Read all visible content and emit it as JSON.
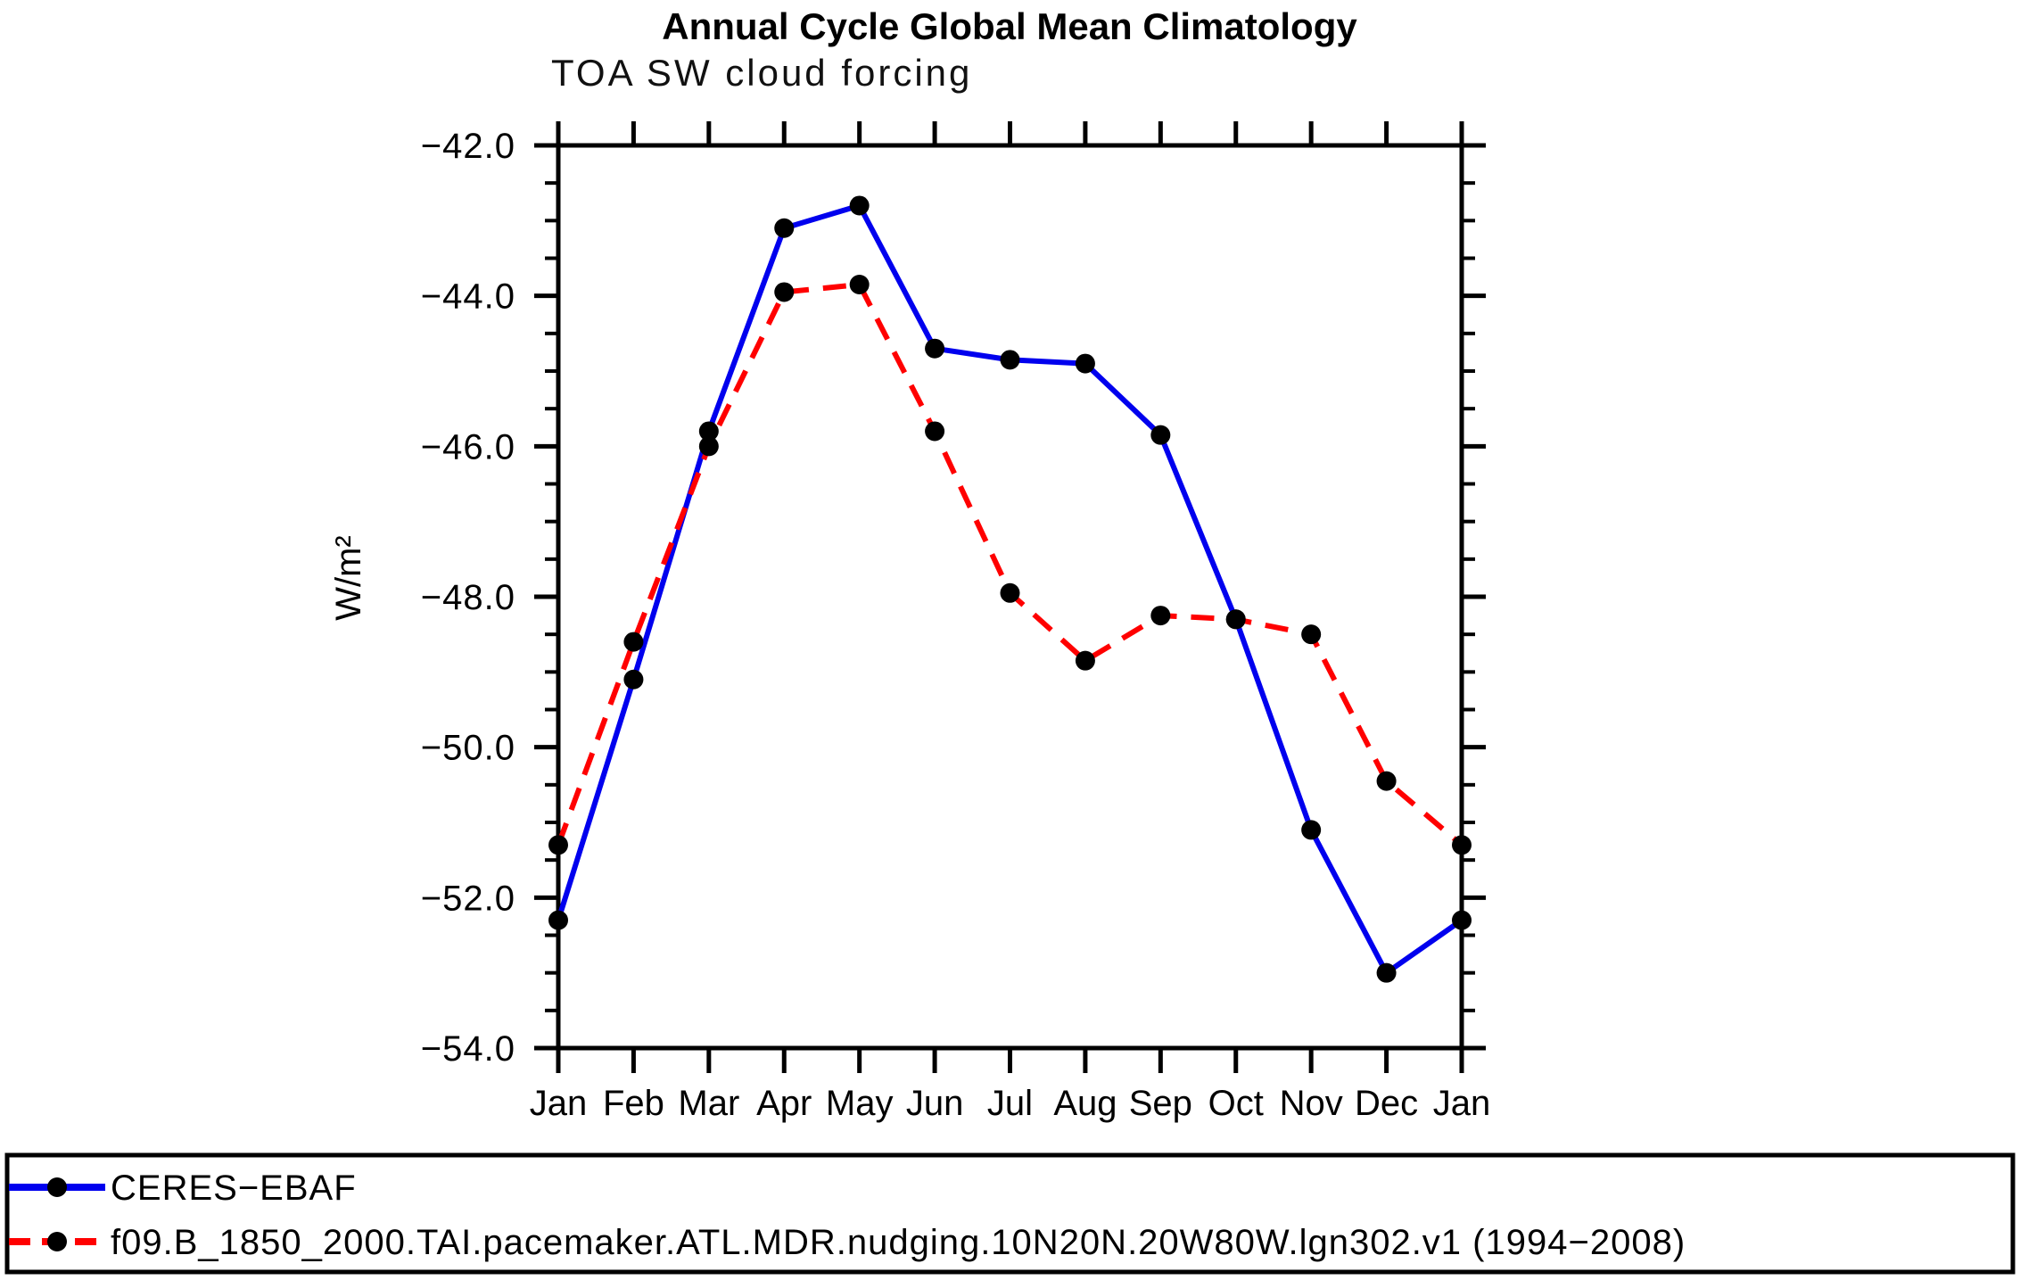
{
  "chart_data": {
    "type": "line",
    "title": "Annual Cycle Global Mean Climatology",
    "subtitle": "TOA SW cloud forcing",
    "ylabel": "W/m²",
    "xlabel": "",
    "categories": [
      "Jan",
      "Feb",
      "Mar",
      "Apr",
      "May",
      "Jun",
      "Jul",
      "Aug",
      "Sep",
      "Oct",
      "Nov",
      "Dec",
      "Jan"
    ],
    "series": [
      {
        "name": "CERES−EBAF",
        "color": "#0000ee",
        "line_style": "solid",
        "line_width": 6,
        "marker": "filled-circle",
        "marker_color": "#000000",
        "values": [
          -52.3,
          -49.1,
          -45.8,
          -43.1,
          -42.8,
          -44.7,
          -44.85,
          -44.9,
          -45.85,
          -48.3,
          -51.1,
          -53.0,
          -52.3
        ]
      },
      {
        "name": "f09.B_1850_2000.TAI.pacemaker.ATL.MDR.nudging.10N20N.20W80W.lgn302.v1 (1994−2008)",
        "color": "#ff0000",
        "line_style": "dashed",
        "line_width": 6,
        "marker": "filled-circle",
        "marker_color": "#000000",
        "values": [
          -51.3,
          -48.6,
          -46.0,
          -43.95,
          -43.85,
          -45.8,
          -47.95,
          -48.85,
          -48.25,
          -48.3,
          -48.5,
          -50.45,
          -51.3
        ]
      }
    ],
    "ylim": [
      -54.0,
      -42.0
    ],
    "ytick_step": 2.0,
    "ytick_minor_step": 0.5,
    "ytick_labels": [
      "−42.0",
      "−44.0",
      "−46.0",
      "−48.0",
      "−50.0",
      "−52.0",
      "−54.0"
    ],
    "grid": false,
    "axis_color": "#000000",
    "legend_position": "bottom-box"
  }
}
